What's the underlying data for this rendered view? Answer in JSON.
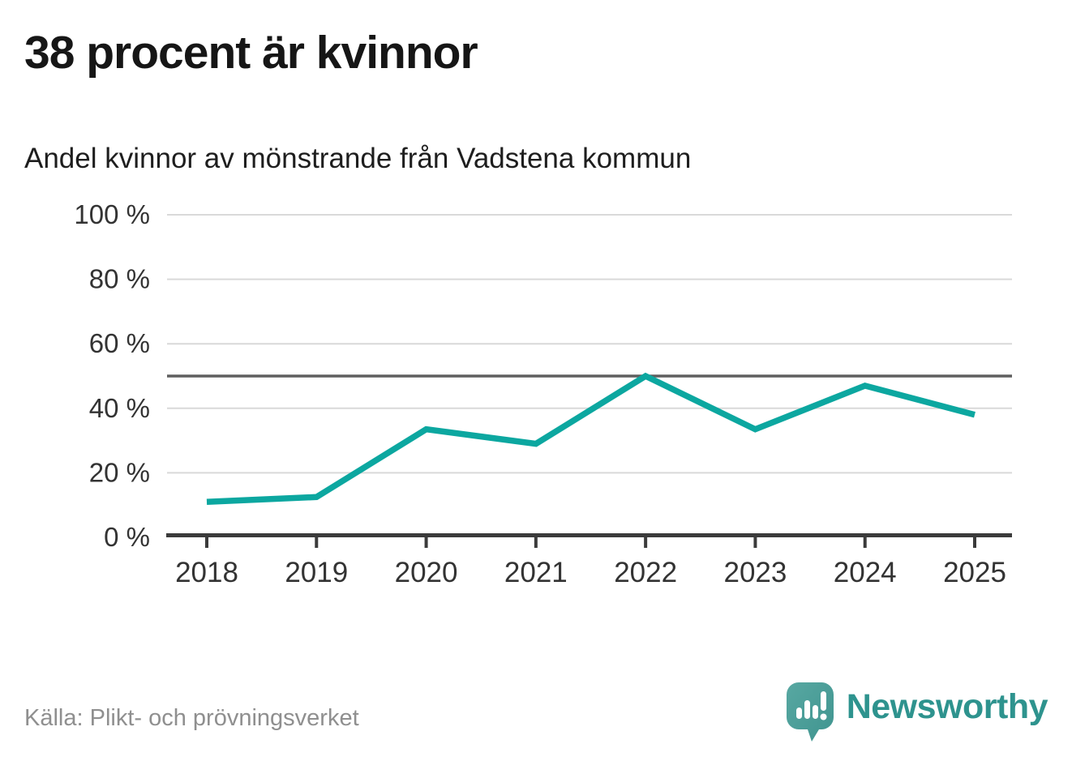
{
  "title": "38 procent är kvinnor",
  "subtitle": "Andel kvinnor av mönstrande från Vadstena kommun",
  "source": "Källa: Plikt- och prövningsverket",
  "brand": {
    "name": "Newsworthy",
    "logo_icon": "speech-bubble-bar-chart-icon",
    "bubble_color": "#4a9d99",
    "text_color": "#2e938e"
  },
  "colors": {
    "line": "#0ca7a0",
    "grid": "#d9d9d9",
    "axis": "#3b3b3b",
    "reference_line": "#5f5f5f",
    "tick_label": "#333333",
    "source_text": "#8f8f8f"
  },
  "chart_data": {
    "type": "line",
    "title": "38 procent är kvinnor",
    "subtitle": "Andel kvinnor av mönstrande från Vadstena kommun",
    "x": [
      2018,
      2019,
      2020,
      2021,
      2022,
      2023,
      2024,
      2025
    ],
    "series": [
      {
        "name": "Andel kvinnor av mönstrande",
        "values": [
          11,
          12.5,
          33.5,
          29,
          50,
          33.5,
          47,
          38
        ]
      }
    ],
    "xlabel": "",
    "ylabel": "",
    "ylim": [
      0,
      100
    ],
    "yticks": [
      0,
      20,
      40,
      60,
      80,
      100
    ],
    "ytick_suffix": " %",
    "reference_line_y": 50,
    "grid": "horizontal",
    "legend": "none",
    "line_color": "#0ca7a0"
  }
}
